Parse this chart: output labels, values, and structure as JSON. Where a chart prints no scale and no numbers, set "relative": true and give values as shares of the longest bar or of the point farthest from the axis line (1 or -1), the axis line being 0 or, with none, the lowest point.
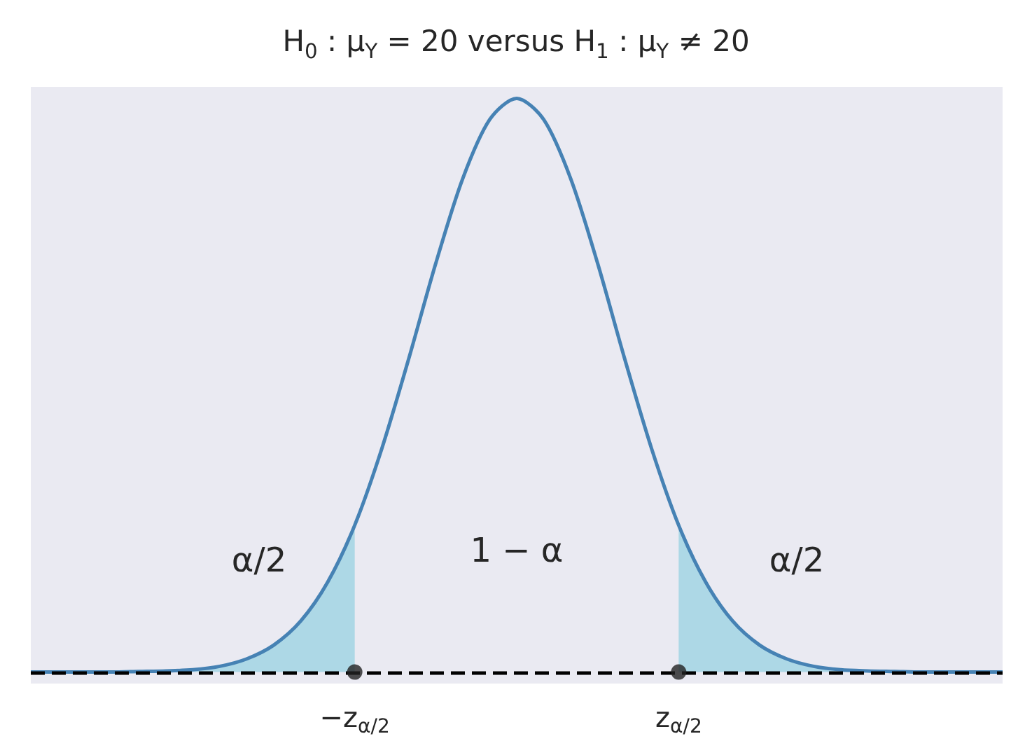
{
  "chart_data": {
    "type": "line",
    "title": "H$_{0}$ : μ$_{Y}$ = 20 versus H$_{1}$ : μ$_{Y}$ ≠ 20",
    "relative": true,
    "categories": [
      null,
      null,
      null,
      null,
      null,
      null,
      null,
      null,
      null,
      null,
      null,
      null,
      "−z$_{α/2}$",
      null,
      null,
      null,
      null,
      null,
      null,
      null,
      null,
      null,
      null,
      null,
      "z$_{α/2}$",
      null,
      null,
      null,
      null,
      null,
      null,
      null,
      null,
      null,
      null,
      null,
      null
    ],
    "series": [
      {
        "type": "area",
        "color": "#add8e6",
        "values": [
          0,
          0,
          0,
          0,
          0.001,
          0.002,
          0.004,
          0.01,
          0.023,
          0.047,
          0.089,
          0.157,
          0.256,
          null,
          null,
          null,
          null,
          null,
          null,
          null,
          null,
          null,
          null,
          null,
          0.256,
          0.157,
          0.089,
          0.047,
          0.023,
          0.01,
          0.004,
          0.002,
          0.001,
          0,
          0,
          0,
          0
        ]
      },
      {
        "color": "#4682b4",
        "values": [
          0,
          0,
          0,
          0,
          0.001,
          0.002,
          0.004,
          0.01,
          0.023,
          0.047,
          0.089,
          0.157,
          0.256,
          0.389,
          0.546,
          0.712,
          0.86,
          0.963,
          1,
          0.963,
          0.86,
          0.712,
          0.546,
          0.389,
          0.256,
          0.157,
          0.089,
          0.047,
          0.023,
          0.01,
          0.004,
          0.002,
          0.001,
          0,
          0,
          0,
          0
        ]
      },
      {
        "type": "scatter",
        "color": "#222222",
        "x": [
          "−z$_{α/2}$",
          "z$_{α/2}$"
        ],
        "values": [
          0,
          0
        ]
      }
    ],
    "ref_lines": [
      {
        "axis": "y",
        "value": 0,
        "color": "#000000",
        "line_style": "dashed"
      }
    ],
    "annotations": [
      "α/2",
      "1 − α",
      "α/2"
    ]
  }
}
